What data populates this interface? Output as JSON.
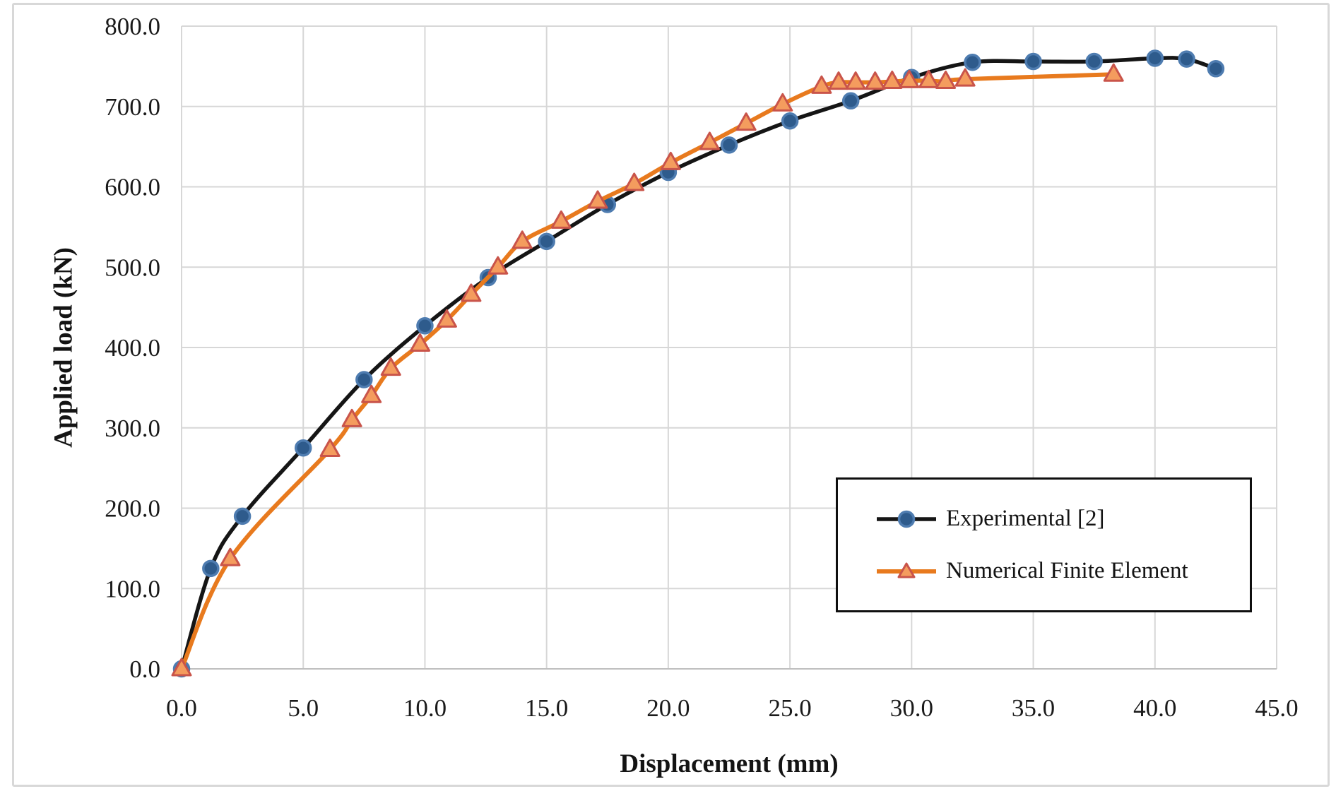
{
  "chart_data": {
    "type": "line",
    "title": "",
    "xlabel": "Displacement (mm)",
    "ylabel": "Applied load (kN)",
    "xlim": [
      0,
      45
    ],
    "ylim": [
      0,
      800
    ],
    "x_ticks": [
      "0.0",
      "5.0",
      "10.0",
      "15.0",
      "20.0",
      "25.0",
      "30.0",
      "35.0",
      "40.0",
      "45.0"
    ],
    "y_ticks": [
      "0.0",
      "100.0",
      "200.0",
      "300.0",
      "400.0",
      "500.0",
      "600.0",
      "700.0",
      "800.0"
    ],
    "grid": true,
    "legend_position": "inside-bottom-right-box",
    "line_style": "smooth",
    "series": [
      {
        "name": "Experimental [2]",
        "line_color": "#151515",
        "line_width": 5.5,
        "marker": "circle",
        "marker_fill": "#2E5B8C",
        "marker_stroke": "#4E7CB0",
        "points": [
          [
            0,
            0
          ],
          [
            1.2,
            125
          ],
          [
            2.5,
            190
          ],
          [
            5,
            275
          ],
          [
            7.5,
            360
          ],
          [
            10,
            427
          ],
          [
            12.6,
            487
          ],
          [
            15,
            532
          ],
          [
            17.5,
            578
          ],
          [
            20,
            618
          ],
          [
            22.5,
            652
          ],
          [
            25,
            682
          ],
          [
            27.5,
            707
          ],
          [
            30,
            736
          ],
          [
            32.5,
            755
          ],
          [
            35,
            756
          ],
          [
            37.5,
            756
          ],
          [
            40,
            760
          ],
          [
            41.3,
            759
          ],
          [
            42.5,
            747
          ]
        ]
      },
      {
        "name": "Numerical Finite Element",
        "line_color": "#E87A1E",
        "line_width": 6,
        "marker": "triangle",
        "marker_fill": "#F49C5E",
        "marker_stroke": "#C9544A",
        "points": [
          [
            0,
            0
          ],
          [
            2,
            137
          ],
          [
            6.1,
            273
          ],
          [
            7,
            310
          ],
          [
            7.8,
            340
          ],
          [
            8.6,
            374
          ],
          [
            9.8,
            404
          ],
          [
            10.9,
            434
          ],
          [
            11.9,
            466
          ],
          [
            13,
            500
          ],
          [
            14,
            532
          ],
          [
            15.6,
            557
          ],
          [
            17.1,
            582
          ],
          [
            18.6,
            604
          ],
          [
            20.1,
            630
          ],
          [
            21.7,
            655
          ],
          [
            23.2,
            679
          ],
          [
            24.7,
            703
          ],
          [
            26.3,
            725
          ],
          [
            27,
            730
          ],
          [
            27.7,
            730
          ],
          [
            28.5,
            730
          ],
          [
            29.2,
            731
          ],
          [
            29.9,
            732
          ],
          [
            30.7,
            732
          ],
          [
            31.4,
            731
          ],
          [
            32.2,
            734
          ],
          [
            38.3,
            740
          ]
        ]
      }
    ],
    "colors": {
      "gridline": "#d7d7d7",
      "axis_line": "#bfbfbf",
      "tick_text": "#1a1a1a",
      "outer_border": "#d8d8d8",
      "legend_border": "#0f0f0f"
    }
  }
}
